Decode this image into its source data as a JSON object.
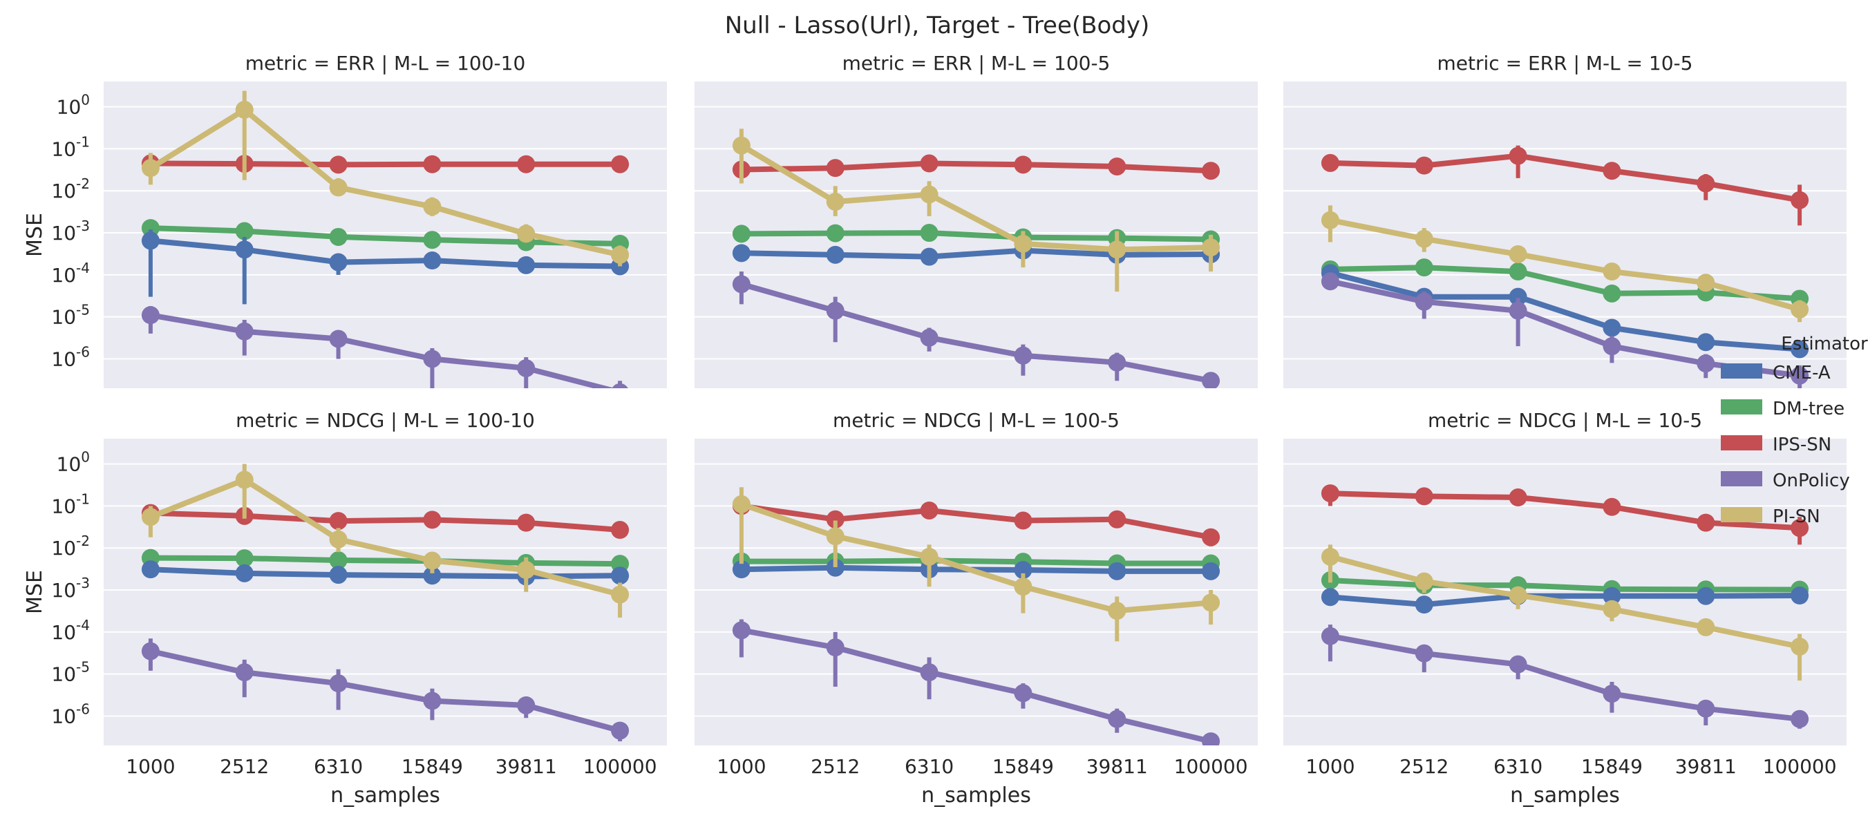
{
  "chart_data": {
    "type": "line",
    "title": "Null - Lasso(Url), Target - Tree(Body)",
    "xlabel": "n_samples",
    "ylabel": "MSE",
    "categories": [
      "1000",
      "2512",
      "6310",
      "15849",
      "39811",
      "100000"
    ],
    "yscale": "log",
    "ylim": [
      2e-07,
      4
    ],
    "y_ticks": [
      1e-06,
      1e-05,
      0.0001,
      0.001,
      0.01,
      0.1,
      1
    ],
    "y_tick_labels": [
      {
        "base": "10",
        "exp": "-6"
      },
      {
        "base": "10",
        "exp": "-5"
      },
      {
        "base": "10",
        "exp": "-4"
      },
      {
        "base": "10",
        "exp": "-3"
      },
      {
        "base": "10",
        "exp": "-2"
      },
      {
        "base": "10",
        "exp": "-1"
      },
      {
        "base": "10",
        "exp": "0"
      }
    ],
    "grid": true,
    "legend": {
      "title": "Estimator",
      "placement": "right",
      "entries": [
        {
          "name": "CME-A",
          "color": "#4C72B0"
        },
        {
          "name": "DM-tree",
          "color": "#55A868"
        },
        {
          "name": "IPS-SN",
          "color": "#C44E52"
        },
        {
          "name": "OnPolicy",
          "color": "#8172B2"
        },
        {
          "name": "PI-SN",
          "color": "#CCB974"
        }
      ]
    },
    "panels": [
      {
        "title": "metric = ERR | M-L = 100-10",
        "series": [
          {
            "name": "IPS-SN",
            "values": [
              0.045,
              0.044,
              0.042,
              0.043,
              0.043,
              0.043
            ],
            "err_low": [
              0.04,
              0.04,
              0.038,
              0.039,
              0.039,
              0.039
            ],
            "err_high": [
              0.05,
              0.049,
              0.047,
              0.048,
              0.048,
              0.048
            ]
          },
          {
            "name": "DM-tree",
            "values": [
              0.0013,
              0.0011,
              0.0008,
              0.00068,
              0.0006,
              0.00055
            ],
            "err_low": [
              0.0011,
              0.00095,
              0.0007,
              0.0006,
              0.00053,
              0.00048
            ],
            "err_high": [
              0.0015,
              0.0013,
              0.00092,
              0.0008,
              0.0007,
              0.00063
            ]
          },
          {
            "name": "CME-A",
            "values": [
              0.00065,
              0.0004,
              0.0002,
              0.00022,
              0.00017,
              0.00016
            ],
            "err_low": [
              3e-05,
              2e-05,
              0.0001,
              0.00015,
              0.00012,
              0.00011
            ],
            "err_high": [
              0.0012,
              0.0008,
              0.0003,
              0.00028,
              0.00022,
              0.0002
            ]
          },
          {
            "name": "OnPolicy",
            "values": [
              1.1e-05,
              4.5e-06,
              3e-06,
              1e-06,
              6e-07,
              1.6e-07
            ],
            "err_low": [
              4e-06,
              1.2e-06,
              1e-06,
              2e-07,
              1.8e-07,
              5e-08
            ],
            "err_high": [
              1.8e-05,
              8.5e-06,
              4.5e-06,
              1.8e-06,
              1.1e-06,
              3e-07
            ]
          },
          {
            "name": "PI-SN",
            "values": [
              0.035,
              0.85,
              0.012,
              0.0042,
              0.00095,
              0.0003
            ],
            "err_low": [
              0.014,
              0.018,
              0.008,
              0.0025,
              0.0006,
              0.00016
            ],
            "err_high": [
              0.08,
              2.4,
              0.02,
              0.007,
              0.0016,
              0.0005
            ]
          }
        ]
      },
      {
        "title": "metric = ERR | M-L = 100-5",
        "series": [
          {
            "name": "IPS-SN",
            "values": [
              0.032,
              0.035,
              0.045,
              0.042,
              0.038,
              0.03
            ],
            "err_low": [
              0.028,
              0.031,
              0.04,
              0.037,
              0.034,
              0.026
            ],
            "err_high": [
              0.036,
              0.04,
              0.05,
              0.047,
              0.042,
              0.034
            ]
          },
          {
            "name": "DM-tree",
            "values": [
              0.00095,
              0.00098,
              0.001,
              0.00078,
              0.00075,
              0.0007
            ],
            "err_low": [
              0.00085,
              0.00088,
              0.0009,
              0.0007,
              0.00068,
              0.00063
            ],
            "err_high": [
              0.0011,
              0.0011,
              0.0011,
              0.00087,
              0.00083,
              0.00078
            ]
          },
          {
            "name": "CME-A",
            "values": [
              0.00033,
              0.0003,
              0.00027,
              0.00038,
              0.0003,
              0.00031
            ],
            "err_low": [
              0.00025,
              0.00023,
              0.0002,
              0.00028,
              0.00022,
              0.00023
            ],
            "err_high": [
              0.00042,
              0.00038,
              0.00034,
              0.0005,
              0.0004,
              0.0004
            ]
          },
          {
            "name": "OnPolicy",
            "values": [
              6e-05,
              1.4e-05,
              3.2e-06,
              1.2e-06,
              8.2e-07,
              3e-07
            ],
            "err_low": [
              2e-05,
              2.5e-06,
              1.5e-06,
              4e-07,
              3e-07,
              1.8e-07
            ],
            "err_high": [
              0.00012,
              3e-05,
              5.5e-06,
              2.2e-06,
              1.4e-06,
              4.5e-07
            ]
          },
          {
            "name": "PI-SN",
            "values": [
              0.12,
              0.0055,
              0.0082,
              0.00055,
              0.0004,
              0.00045
            ],
            "err_low": [
              0.015,
              0.0025,
              0.0025,
              0.00015,
              4e-05,
              0.00012
            ],
            "err_high": [
              0.3,
              0.013,
              0.017,
              0.0011,
              0.0011,
              0.0009
            ]
          }
        ]
      },
      {
        "title": "metric = ERR | M-L = 10-5",
        "series": [
          {
            "name": "IPS-SN",
            "values": [
              0.046,
              0.04,
              0.068,
              0.03,
              0.015,
              0.006
            ],
            "err_low": [
              0.04,
              0.035,
              0.02,
              0.02,
              0.006,
              0.0015
            ],
            "err_high": [
              0.052,
              0.046,
              0.12,
              0.04,
              0.025,
              0.014
            ]
          },
          {
            "name": "DM-tree",
            "values": [
              0.000135,
              0.00015,
              0.00012,
              3.6e-05,
              3.8e-05,
              2.7e-05
            ],
            "err_low": [
              0.00011,
              0.00012,
              0.0001,
              3e-05,
              3.2e-05,
              2.2e-05
            ],
            "err_high": [
              0.00016,
              0.00018,
              0.00014,
              4.3e-05,
              4.5e-05,
              3.3e-05
            ]
          },
          {
            "name": "CME-A",
            "values": [
              0.00011,
              3e-05,
              3e-05,
              5.5e-06,
              2.5e-06,
              1.7e-06
            ],
            "err_low": [
              8e-05,
              2.2e-05,
              2.2e-05,
              4e-06,
              1.8e-06,
              1.2e-06
            ],
            "err_high": [
              0.00014,
              4e-05,
              4e-05,
              7e-06,
              3.3e-06,
              2.3e-06
            ]
          },
          {
            "name": "OnPolicy",
            "values": [
              7e-05,
              2.3e-05,
              1.4e-05,
              2e-06,
              7.8e-07,
              4e-07
            ],
            "err_low": [
              4.5e-05,
              9e-06,
              2e-06,
              8e-07,
              3.5e-07,
              1.5e-07
            ],
            "err_high": [
              0.00011,
              4e-05,
              2.8e-05,
              3.5e-06,
              1.3e-06,
              7e-07
            ]
          },
          {
            "name": "PI-SN",
            "values": [
              0.002,
              0.00072,
              0.00031,
              0.00012,
              6.5e-05,
              1.5e-05
            ],
            "err_low": [
              0.0006,
              0.00035,
              0.00022,
              8e-05,
              4.5e-05,
              7.5e-06
            ],
            "err_high": [
              0.0045,
              0.0013,
              0.00042,
              0.00017,
              9.5e-05,
              2.5e-05
            ]
          }
        ]
      },
      {
        "title": "metric = NDCG | M-L = 100-10",
        "series": [
          {
            "name": "IPS-SN",
            "values": [
              0.068,
              0.058,
              0.044,
              0.047,
              0.04,
              0.027
            ],
            "err_low": [
              0.06,
              0.05,
              0.038,
              0.04,
              0.034,
              0.021
            ],
            "err_high": [
              0.078,
              0.066,
              0.05,
              0.054,
              0.046,
              0.033
            ]
          },
          {
            "name": "DM-tree",
            "values": [
              0.0058,
              0.0057,
              0.0051,
              0.0049,
              0.0044,
              0.0042
            ],
            "err_low": [
              0.0052,
              0.0051,
              0.0046,
              0.0044,
              0.0039,
              0.0037
            ],
            "err_high": [
              0.0064,
              0.0063,
              0.0056,
              0.0054,
              0.0049,
              0.0047
            ]
          },
          {
            "name": "CME-A",
            "values": [
              0.0031,
              0.0025,
              0.0023,
              0.0022,
              0.0021,
              0.0022
            ],
            "err_low": [
              0.0026,
              0.0021,
              0.0019,
              0.0018,
              0.0017,
              0.0018
            ],
            "err_high": [
              0.0037,
              0.003,
              0.0027,
              0.0026,
              0.0025,
              0.0026
            ]
          },
          {
            "name": "OnPolicy",
            "values": [
              3.5e-05,
              1.1e-05,
              6e-06,
              2.3e-06,
              1.8e-06,
              4.5e-07
            ],
            "err_low": [
              1.2e-05,
              2.8e-06,
              1.4e-06,
              8e-07,
              9e-07,
              2.5e-07
            ],
            "err_high": [
              7e-05,
              2.2e-05,
              1.3e-05,
              4.5e-06,
              2.7e-06,
              6e-07
            ]
          },
          {
            "name": "PI-SN",
            "values": [
              0.055,
              0.42,
              0.016,
              0.005,
              0.003,
              0.00078
            ],
            "err_low": [
              0.018,
              0.05,
              0.008,
              0.0025,
              0.0009,
              0.00022
            ],
            "err_high": [
              0.1,
              1.0,
              0.03,
              0.008,
              0.006,
              0.0015
            ]
          }
        ]
      },
      {
        "title": "metric = NDCG | M-L = 100-5",
        "series": [
          {
            "name": "IPS-SN",
            "values": [
              0.1,
              0.048,
              0.078,
              0.045,
              0.048,
              0.018
            ],
            "err_low": [
              0.085,
              0.041,
              0.067,
              0.035,
              0.034,
              0.011
            ],
            "err_high": [
              0.115,
              0.055,
              0.09,
              0.06,
              0.07,
              0.026
            ]
          },
          {
            "name": "DM-tree",
            "values": [
              0.0048,
              0.0048,
              0.005,
              0.0047,
              0.0043,
              0.0043
            ],
            "err_low": [
              0.0043,
              0.0043,
              0.0045,
              0.0042,
              0.0038,
              0.0038
            ],
            "err_high": [
              0.0054,
              0.0054,
              0.0056,
              0.0053,
              0.0048,
              0.0048
            ]
          },
          {
            "name": "CME-A",
            "values": [
              0.0031,
              0.0034,
              0.0031,
              0.003,
              0.0028,
              0.0028
            ],
            "err_low": [
              0.0026,
              0.0029,
              0.0026,
              0.0025,
              0.0023,
              0.0023
            ],
            "err_high": [
              0.0036,
              0.004,
              0.0036,
              0.0035,
              0.0033,
              0.0033
            ]
          },
          {
            "name": "OnPolicy",
            "values": [
              0.00011,
              4.3e-05,
              1.1e-05,
              3.5e-06,
              8.5e-07,
              2.5e-07
            ],
            "err_low": [
              2.5e-05,
              5e-06,
              2.5e-06,
              1.5e-06,
              4e-07,
              1.5e-07
            ],
            "err_high": [
              0.0002,
              0.0001,
              2.5e-05,
              6e-06,
              1.5e-06,
              4e-07
            ]
          },
          {
            "name": "PI-SN",
            "values": [
              0.11,
              0.019,
              0.0062,
              0.0012,
              0.00032,
              0.0005
            ],
            "err_low": [
              0.0042,
              0.0035,
              0.0012,
              0.00028,
              6e-05,
              0.00015
            ],
            "err_high": [
              0.28,
              0.045,
              0.012,
              0.0025,
              0.0007,
              0.001
            ]
          }
        ]
      },
      {
        "title": "metric = NDCG | M-L = 10-5",
        "series": [
          {
            "name": "IPS-SN",
            "values": [
              0.2,
              0.17,
              0.16,
              0.095,
              0.04,
              0.03
            ],
            "err_low": [
              0.1,
              0.14,
              0.12,
              0.06,
              0.025,
              0.012
            ],
            "err_high": [
              0.24,
              0.2,
              0.21,
              0.14,
              0.06,
              0.055
            ]
          },
          {
            "name": "DM-tree",
            "values": [
              0.0017,
              0.0013,
              0.0013,
              0.00105,
              0.00103,
              0.00102
            ],
            "err_low": [
              0.0015,
              0.0011,
              0.0011,
              0.00092,
              0.0009,
              0.0009
            ],
            "err_high": [
              0.0019,
              0.0015,
              0.0015,
              0.0012,
              0.00117,
              0.00115
            ]
          },
          {
            "name": "CME-A",
            "values": [
              0.00068,
              0.00045,
              0.00072,
              0.00072,
              0.00072,
              0.00074
            ],
            "err_low": [
              0.00055,
              0.00037,
              0.00058,
              0.00058,
              0.00058,
              0.0006
            ],
            "err_high": [
              0.00082,
              0.00055,
              0.00088,
              0.00088,
              0.00088,
              0.0009
            ]
          },
          {
            "name": "OnPolicy",
            "values": [
              8e-05,
              3.1e-05,
              1.7e-05,
              3.4e-06,
              1.5e-06,
              8.5e-07
            ],
            "err_low": [
              2e-05,
              1.1e-05,
              7.5e-06,
              1.2e-06,
              6e-07,
              5e-07
            ],
            "err_high": [
              0.00015,
              5e-05,
              2.7e-05,
              6.5e-06,
              2.4e-06,
              1.2e-06
            ]
          },
          {
            "name": "PI-SN",
            "values": [
              0.0062,
              0.0016,
              0.00075,
              0.00035,
              0.00013,
              4.5e-05
            ],
            "err_low": [
              0.0015,
              0.00085,
              0.00035,
              0.00018,
              9e-05,
              7e-06
            ],
            "err_high": [
              0.012,
              0.0025,
              0.0012,
              0.00055,
              0.00018,
              9e-05
            ]
          }
        ]
      }
    ]
  }
}
